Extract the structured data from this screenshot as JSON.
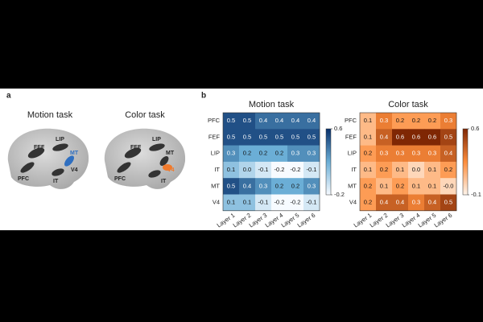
{
  "panel_a": {
    "label": "a",
    "brains": [
      {
        "title": "Motion task",
        "regions": [
          "PFC",
          "FEF",
          "LIP",
          "MT",
          "V4",
          "IT"
        ]
      },
      {
        "title": "Color task",
        "regions": [
          "PFC",
          "FEF",
          "LIP",
          "MT",
          "V4",
          "IT"
        ]
      }
    ]
  },
  "panel_b": {
    "label": "b"
  },
  "chart_data": [
    {
      "type": "heatmap",
      "title": "Motion task",
      "x_categories": [
        "Layer 1",
        "Layer 2",
        "Layer 3",
        "Layer 4",
        "Layer 5",
        "Layer 6"
      ],
      "y_categories": [
        "PFC",
        "FEF",
        "LIP",
        "IT",
        "MT",
        "V4"
      ],
      "values": [
        [
          0.5,
          0.5,
          0.4,
          0.4,
          0.4,
          0.4
        ],
        [
          0.5,
          0.5,
          0.5,
          0.5,
          0.5,
          0.5
        ],
        [
          0.3,
          0.2,
          0.2,
          0.2,
          0.3,
          0.3
        ],
        [
          0.1,
          0.0,
          -0.1,
          -0.2,
          -0.2,
          -0.1
        ],
        [
          0.5,
          0.4,
          0.3,
          0.2,
          0.2,
          0.3
        ],
        [
          0.1,
          0.1,
          -0.1,
          -0.2,
          -0.2,
          -0.1
        ]
      ],
      "value_labels": [
        [
          "0.5",
          "0.5",
          "0.4",
          "0.4",
          "0.4",
          "0.4"
        ],
        [
          "0.5",
          "0.5",
          "0.5",
          "0.5",
          "0.5",
          "0.5"
        ],
        [
          "0.3",
          "0.2",
          "0.2",
          "0.2",
          "0.3",
          "0.3"
        ],
        [
          "0.1",
          "0.0",
          "-0.1",
          "-0.2",
          "-0.2",
          "-0.1"
        ],
        [
          "0.5",
          "0.4",
          "0.3",
          "0.2",
          "0.2",
          "0.3"
        ],
        [
          "0.1",
          "0.1",
          "-0.1",
          "-0.2",
          "-0.2",
          "-0.1"
        ]
      ],
      "clim": [
        -0.2,
        0.6
      ],
      "cticks": [
        -0.2,
        0.6
      ],
      "colors": [
        "#f7fbff",
        "#6baed6",
        "#08306b"
      ]
    },
    {
      "type": "heatmap",
      "title": "Color task",
      "x_categories": [
        "Layer 1",
        "Layer 2",
        "Layer 3",
        "Layer 4",
        "Layer 5",
        "Layer 6"
      ],
      "y_categories": [
        "PFC",
        "FEF",
        "LIP",
        "IT",
        "MT",
        "V4"
      ],
      "values": [
        [
          0.1,
          0.3,
          0.2,
          0.2,
          0.2,
          0.3
        ],
        [
          0.1,
          0.4,
          0.6,
          0.6,
          0.6,
          0.5
        ],
        [
          0.2,
          0.3,
          0.3,
          0.3,
          0.3,
          0.4
        ],
        [
          0.1,
          0.2,
          0.1,
          0.0,
          0.1,
          0.2
        ],
        [
          0.2,
          0.1,
          0.2,
          0.1,
          0.1,
          0.0
        ],
        [
          0.2,
          0.4,
          0.4,
          0.3,
          0.4,
          0.5
        ]
      ],
      "value_labels": [
        [
          "0.1",
          "0.3",
          "0.2",
          "0.2",
          "0.2",
          "0.3"
        ],
        [
          "0.1",
          "0.4",
          "0.6",
          "0.6",
          "0.6",
          "0.5"
        ],
        [
          "0.2",
          "0.3",
          "0.3",
          "0.3",
          "0.3",
          "0.4"
        ],
        [
          "0.1",
          "0.2",
          "0.1",
          "0.0",
          "0.1",
          "0.2"
        ],
        [
          "0.2",
          "0.1",
          "0.2",
          "0.1",
          "0.1",
          "-0.0"
        ],
        [
          "0.2",
          "0.4",
          "0.4",
          "0.3",
          "0.4",
          "0.5"
        ]
      ],
      "clim": [
        -0.1,
        0.6
      ],
      "cticks": [
        -0.1,
        0.6
      ],
      "colors": [
        "#fff5eb",
        "#fd8d3c",
        "#7f2704"
      ]
    }
  ]
}
